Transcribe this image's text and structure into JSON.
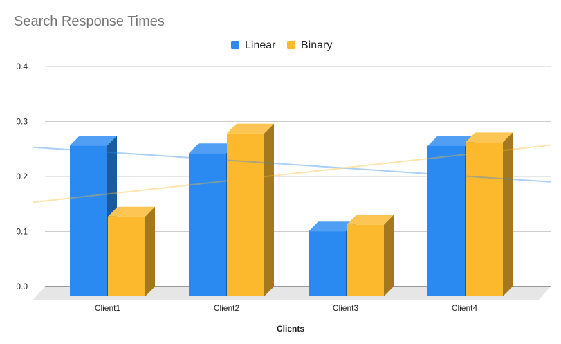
{
  "chart_data": {
    "type": "bar",
    "title": "Search Response Times",
    "xlabel": "Clients",
    "ylabel": "",
    "categories": [
      "Client1",
      "Client2",
      "Client3",
      "Client4"
    ],
    "series": [
      {
        "name": "Linear",
        "values": [
          0.274,
          0.26,
          0.118,
          0.273
        ],
        "color": "#2a8af1"
      },
      {
        "name": "Binary",
        "values": [
          0.145,
          0.296,
          0.13,
          0.28
        ],
        "color": "#fdb92e"
      }
    ],
    "ylim": [
      0,
      0.4
    ],
    "yticks": [
      "0.0",
      "0.1",
      "0.2",
      "0.3",
      "0.4"
    ],
    "grid": true,
    "legend_position": "top",
    "style": "3d"
  }
}
